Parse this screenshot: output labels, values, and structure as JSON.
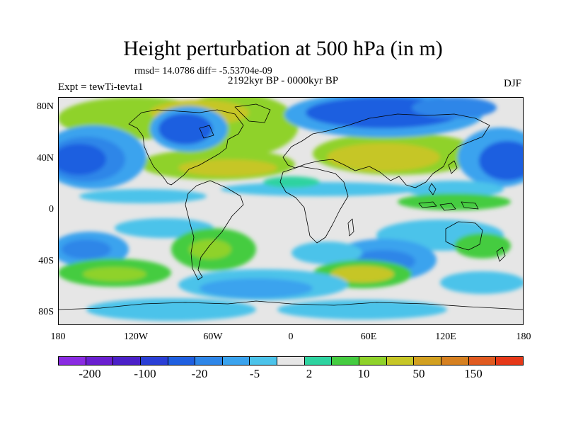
{
  "title": "Height perturbation at 500 hPa (in m)",
  "stats": "rmsd= 14.0786 diff= -5.53704e-09",
  "period": "2192kyr BP - 0000kyr BP",
  "experiment": "Expt = tewTi-tevta1",
  "season": "DJF",
  "map": {
    "projection": "cylindrical equidistant",
    "lon_range": [
      -180,
      180
    ],
    "lat_range": [
      -90,
      90
    ],
    "lat_labels": [
      "80N",
      "40N",
      "0",
      "40S",
      "80S"
    ],
    "lon_labels": [
      "180",
      "120W",
      "60W",
      "0",
      "60E",
      "120E",
      "180"
    ],
    "coastlines": true,
    "field": "geopotential height perturbation",
    "units": "m"
  },
  "colorbar": {
    "colors": [
      "#8a2be2",
      "#6a1fd0",
      "#4b20c8",
      "#2a3fd6",
      "#1f5fe0",
      "#2e86e8",
      "#3aa3ee",
      "#4cc3ea",
      "#e6e6e6",
      "#2ed3a0",
      "#45cc40",
      "#8fd22a",
      "#c6c626",
      "#d2a020",
      "#d68020",
      "#e05a20",
      "#e63818"
    ],
    "labels": [
      "-200",
      "-100",
      "-20",
      "-5",
      "2",
      "10",
      "50",
      "150"
    ]
  }
}
